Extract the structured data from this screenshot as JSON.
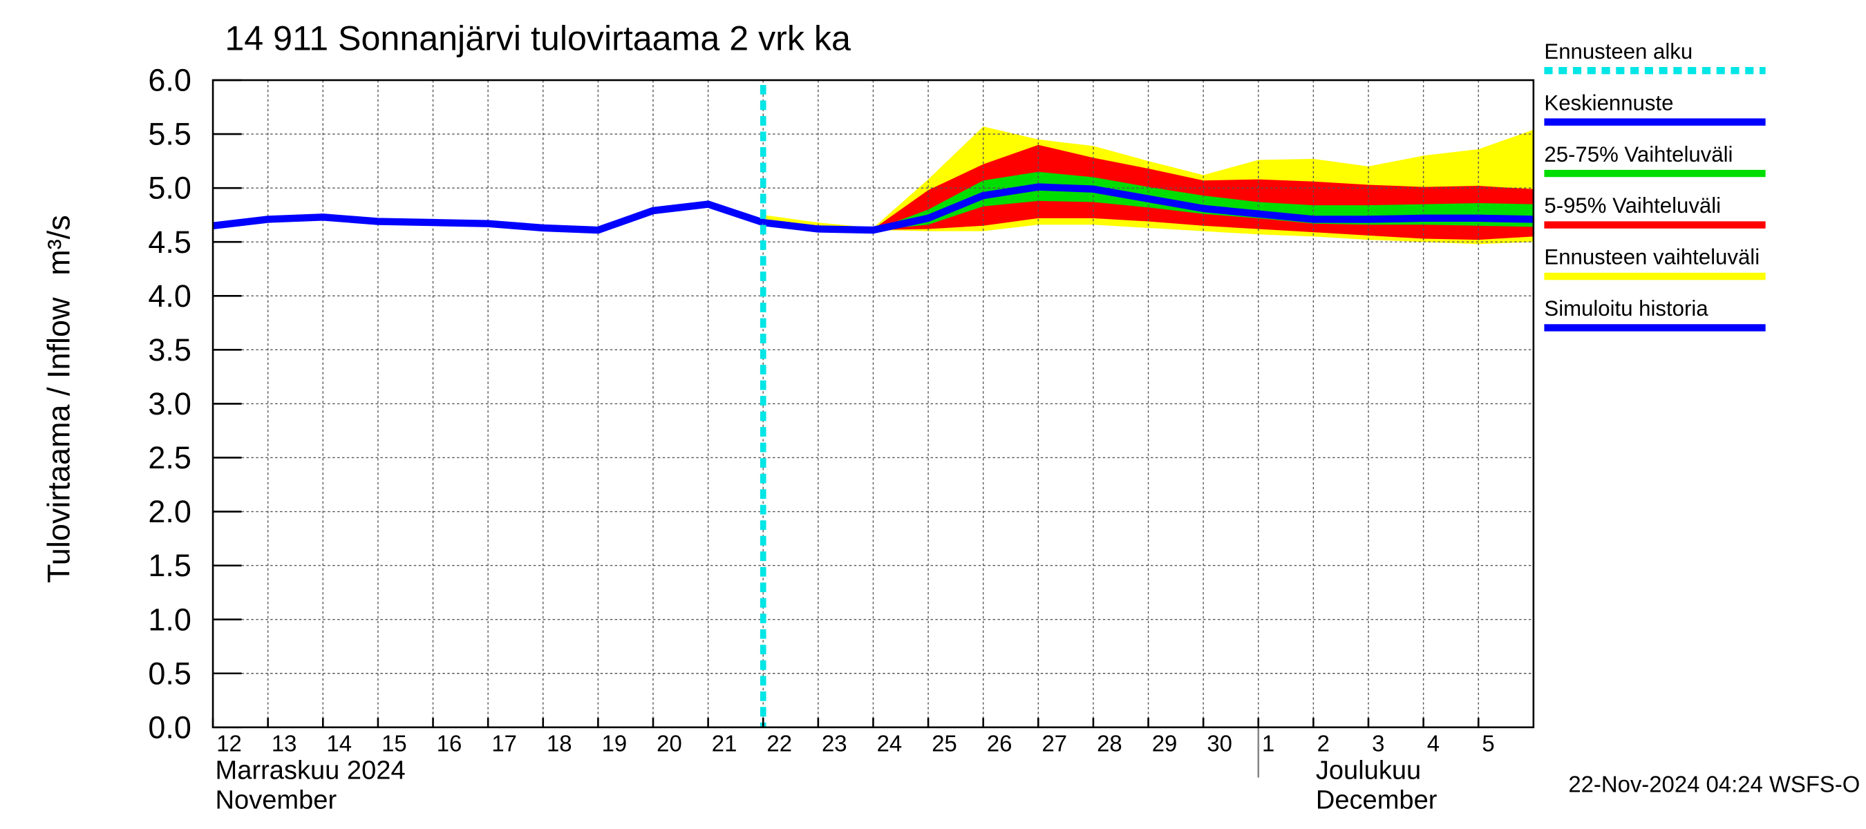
{
  "chart_data": {
    "type": "line",
    "title": "14 911 Sonnanjärvi tulovirtaama 2 vrk ka",
    "y_label": "Tulovirtaama / Inflow",
    "y_unit": "m³/s",
    "footer": "22-Nov-2024 04:24 WSFS-O",
    "xlim": [
      "2024-11-12",
      "2024-12-06"
    ],
    "xticks": [
      {
        "value": "2024-11-12",
        "label": "12"
      },
      {
        "value": "2024-11-13",
        "label": "13"
      },
      {
        "value": "2024-11-14",
        "label": "14"
      },
      {
        "value": "2024-11-15",
        "label": "15"
      },
      {
        "value": "2024-11-16",
        "label": "16"
      },
      {
        "value": "2024-11-17",
        "label": "17"
      },
      {
        "value": "2024-11-18",
        "label": "18"
      },
      {
        "value": "2024-11-19",
        "label": "19"
      },
      {
        "value": "2024-11-20",
        "label": "20"
      },
      {
        "value": "2024-11-21",
        "label": "21"
      },
      {
        "value": "2024-11-22",
        "label": "22"
      },
      {
        "value": "2024-11-23",
        "label": "23"
      },
      {
        "value": "2024-11-24",
        "label": "24"
      },
      {
        "value": "2024-11-25",
        "label": "25"
      },
      {
        "value": "2024-11-26",
        "label": "26"
      },
      {
        "value": "2024-11-27",
        "label": "27"
      },
      {
        "value": "2024-11-28",
        "label": "28"
      },
      {
        "value": "2024-11-29",
        "label": "29"
      },
      {
        "value": "2024-11-30",
        "label": "30"
      },
      {
        "value": "2024-12-01",
        "label": "1"
      },
      {
        "value": "2024-12-02",
        "label": "2"
      },
      {
        "value": "2024-12-03",
        "label": "3"
      },
      {
        "value": "2024-12-04",
        "label": "4"
      },
      {
        "value": "2024-12-05",
        "label": "5"
      }
    ],
    "month_labels": [
      {
        "x": "2024-11-12",
        "label": "Marraskuu 2024",
        "sublabel": "November"
      },
      {
        "x": "2024-12-01",
        "label": "Joulukuu",
        "sublabel": "December"
      }
    ],
    "ylim": [
      0,
      6
    ],
    "yticks": [
      {
        "value": 0,
        "label": "0.0"
      },
      {
        "value": 0.5,
        "label": "0.5"
      },
      {
        "value": 1,
        "label": "1.0"
      },
      {
        "value": 1.5,
        "label": "1.5"
      },
      {
        "value": 2,
        "label": "2.0"
      },
      {
        "value": 2.5,
        "label": "2.5"
      },
      {
        "value": 3,
        "label": "3.0"
      },
      {
        "value": 3.5,
        "label": "3.5"
      },
      {
        "value": 4,
        "label": "4.0"
      },
      {
        "value": 4.5,
        "label": "4.5"
      },
      {
        "value": 5,
        "label": "5.0"
      },
      {
        "value": 5.5,
        "label": "5.5"
      },
      {
        "value": 6,
        "label": "6.0"
      }
    ],
    "grid": true,
    "forecast_start": {
      "name": "Ennusteen alku",
      "x": "2024-11-22",
      "color": "#00e5e5"
    },
    "series": [
      {
        "name": "Keskiennuste",
        "color": "#0000ff",
        "x": [
          "2024-11-22",
          "2024-11-23",
          "2024-11-24",
          "2024-11-25",
          "2024-11-26",
          "2024-11-27",
          "2024-11-28",
          "2024-11-29",
          "2024-11-30",
          "2024-12-01",
          "2024-12-02",
          "2024-12-03",
          "2024-12-04",
          "2024-12-05",
          "2024-12-06"
        ],
        "values": [
          4.68,
          4.62,
          4.61,
          4.72,
          4.93,
          5.01,
          4.99,
          4.9,
          4.81,
          4.76,
          4.71,
          4.71,
          4.72,
          4.72,
          4.71
        ]
      },
      {
        "name": "25-75% Vaihteluväli",
        "color": "#00dd00",
        "x": [
          "2024-11-22",
          "2024-11-23",
          "2024-11-24",
          "2024-11-25",
          "2024-11-26",
          "2024-11-27",
          "2024-11-28",
          "2024-11-29",
          "2024-11-30",
          "2024-12-01",
          "2024-12-02",
          "2024-12-03",
          "2024-12-04",
          "2024-12-05",
          "2024-12-06"
        ],
        "lower": [
          4.68,
          4.62,
          4.61,
          4.66,
          4.83,
          4.88,
          4.87,
          4.82,
          4.76,
          4.72,
          4.67,
          4.66,
          4.66,
          4.65,
          4.64
        ],
        "upper": [
          4.68,
          4.62,
          4.61,
          4.8,
          5.07,
          5.15,
          5.1,
          5.01,
          4.93,
          4.87,
          4.84,
          4.84,
          4.85,
          4.86,
          4.85
        ]
      },
      {
        "name": "5-95% Vaihteluväli",
        "color": "#ff0000",
        "x": [
          "2024-11-22",
          "2024-11-23",
          "2024-11-24",
          "2024-11-25",
          "2024-11-26",
          "2024-11-27",
          "2024-11-28",
          "2024-11-29",
          "2024-11-30",
          "2024-12-01",
          "2024-12-02",
          "2024-12-03",
          "2024-12-04",
          "2024-12-05",
          "2024-12-06"
        ],
        "lower": [
          4.68,
          4.62,
          4.61,
          4.62,
          4.65,
          4.72,
          4.72,
          4.69,
          4.65,
          4.62,
          4.59,
          4.56,
          4.53,
          4.52,
          4.55
        ],
        "upper": [
          4.7,
          4.64,
          4.62,
          4.98,
          5.22,
          5.4,
          5.28,
          5.18,
          5.07,
          5.08,
          5.06,
          5.03,
          5.01,
          5.02,
          4.99
        ]
      },
      {
        "name": "Ennusteen vaihteluväli",
        "color": "#ffff00",
        "x": [
          "2024-11-22",
          "2024-11-23",
          "2024-11-24",
          "2024-11-25",
          "2024-11-26",
          "2024-11-27",
          "2024-11-28",
          "2024-11-29",
          "2024-11-30",
          "2024-12-01",
          "2024-12-02",
          "2024-12-03",
          "2024-12-04",
          "2024-12-05",
          "2024-12-06"
        ],
        "lower": [
          4.68,
          4.62,
          4.61,
          4.6,
          4.6,
          4.66,
          4.66,
          4.63,
          4.6,
          4.57,
          4.55,
          4.52,
          4.5,
          4.48,
          4.5
        ],
        "upper": [
          4.75,
          4.68,
          4.63,
          5.08,
          5.57,
          5.45,
          5.39,
          5.25,
          5.12,
          5.26,
          5.27,
          5.2,
          5.3,
          5.36,
          5.54
        ]
      },
      {
        "name": "Simuloitu historia",
        "color": "#0000ff",
        "x": [
          "2024-11-12",
          "2024-11-13",
          "2024-11-14",
          "2024-11-15",
          "2024-11-16",
          "2024-11-17",
          "2024-11-18",
          "2024-11-19",
          "2024-11-20",
          "2024-11-21",
          "2024-11-22"
        ],
        "values": [
          4.65,
          4.71,
          4.73,
          4.69,
          4.68,
          4.67,
          4.63,
          4.61,
          4.79,
          4.85,
          4.68
        ]
      }
    ]
  }
}
